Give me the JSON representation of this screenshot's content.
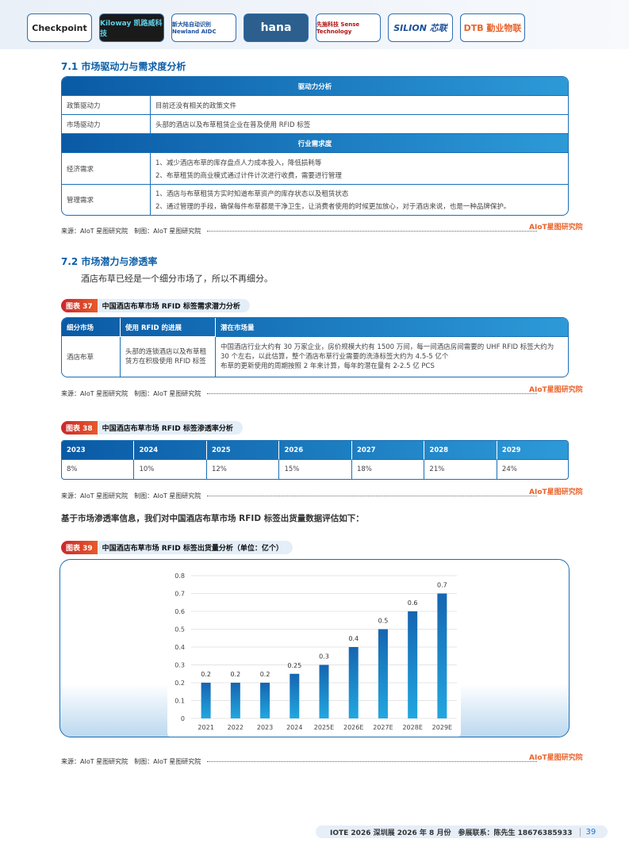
{
  "logos": [
    "Checkpoint",
    "Kiloway 凯路威科技",
    "新大陆自动识别 Newland AIDC",
    "hana",
    "先施科技 Sense Technology",
    "SILION 芯联",
    "DTB 勤业物联"
  ],
  "section1": {
    "title": "7.1 市场驱动力与需求度分析",
    "header1": "驱动力分析",
    "rows1": [
      {
        "k": "政策驱动力",
        "v": "目前还没有相关的政策文件"
      },
      {
        "k": "市场驱动力",
        "v": "头部的酒店以及布草租赁企业在普及使用 RFID 标签"
      }
    ],
    "header2": "行业需求度",
    "rows2": [
      {
        "k": "经济需求",
        "v1": "1、减少酒店布草的库存盘点人力成本投入，降低损耗等",
        "v2": "2、布草租赁的商业模式通过计件计次进行收费，需要进行管理"
      },
      {
        "k": "管理需求",
        "v1": "1、酒店与布草租赁方实时知道布草资产的库存状态以及租赁状态",
        "v2": "2、通过管理的手段，确保每件布草都是干净卫生，让消费者使用的时候更加放心，对于酒店来说，也是一种品牌保护。"
      }
    ]
  },
  "source": "来源：AIoT 星图研究院　制图：AIoT 星图研究院",
  "watermark": "AIoT星图研究院",
  "section2": {
    "title": "7.2 市场潜力与渗透率",
    "para": "酒店布草已经是一个细分市场了，所以不再细分。"
  },
  "fig37": {
    "tag": "图表 37",
    "title": "中国酒店布草市场 RFID 标签需求潜力分析",
    "headers": [
      "细分市场",
      "使用 RFID 的进展",
      "潜在市场量"
    ],
    "row": {
      "c1": "酒店布草",
      "c2": "头部的连锁酒店以及布草租赁方在积极使用 RFID 标签",
      "c3a": "中国酒店行业大约有 30 万家企业，房价规模大约有 1500 万间，每一间酒店房间需要的 UHF RFID 标签大约为 30 个左右，以此估算，整个酒店布草行业需要的洗涤标签大约为 4.5-5 亿个",
      "c3b": "布草的更新使用的周期按照 2 年来计算，每年的潜在量有 2-2.5 亿 PCS"
    }
  },
  "fig38": {
    "tag": "图表 38",
    "title": "中国酒店布草市场 RFID 标签渗透率分析",
    "years": [
      "2023",
      "2024",
      "2025",
      "2026",
      "2027",
      "2028",
      "2029"
    ],
    "rates": [
      "8%",
      "10%",
      "12%",
      "15%",
      "18%",
      "21%",
      "24%"
    ]
  },
  "para2": "基于市场渗透率信息，我们对中国酒店布草市场 RFID 标签出货量数据评估如下：",
  "fig39": {
    "tag": "图表 39",
    "title": "中国酒店布草市场 RFID 标签出货量分析（单位：亿个）"
  },
  "chart_data": {
    "type": "bar",
    "categories": [
      "2021",
      "2022",
      "2023",
      "2024",
      "2025E",
      "2026E",
      "2027E",
      "2028E",
      "2029E"
    ],
    "values": [
      0.2,
      0.2,
      0.2,
      0.25,
      0.3,
      0.4,
      0.5,
      0.6,
      0.7
    ],
    "value_labels": [
      "0.2",
      "0.2",
      "0.2",
      "0.25",
      "0.3",
      "0.4",
      "0.5",
      "0.6",
      "0.7"
    ],
    "ylim": [
      0,
      0.8
    ],
    "yticks": [
      "0",
      "0.1",
      "0.2",
      "0.3",
      "0.4",
      "0.5",
      "0.6",
      "0.7",
      "0.8"
    ],
    "grid": true,
    "colors": {
      "bar_top": "#1565b0",
      "bar_bottom": "#22a7e0"
    }
  },
  "footer": {
    "text": "IOTE 2026 深圳展 2026 年 8 月份　参展联系：陈先生 18676385933",
    "page": "39"
  }
}
